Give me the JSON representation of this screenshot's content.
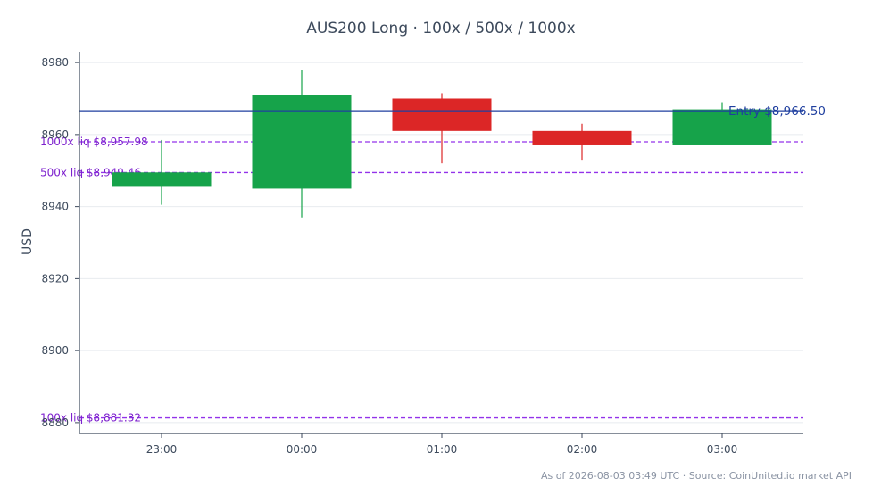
{
  "chart_data": {
    "type": "candlestick",
    "title": "AUS200 Long · 100x / 500x / 1000x",
    "ylabel": "USD",
    "xlabel": "",
    "ylim": [
      8877,
      8983
    ],
    "yticks": [
      8880,
      8900,
      8920,
      8940,
      8960,
      8980
    ],
    "categories": [
      "23:00",
      "00:00",
      "01:00",
      "02:00",
      "03:00"
    ],
    "candles": [
      {
        "open": 8945.5,
        "high": 8958.5,
        "low": 8940.5,
        "close": 8949.5
      },
      {
        "open": 8945.0,
        "high": 8978.0,
        "low": 8937.0,
        "close": 8971.0
      },
      {
        "open": 8970.0,
        "high": 8971.5,
        "low": 8952.0,
        "close": 8961.0
      },
      {
        "open": 8961.0,
        "high": 8963.0,
        "low": 8953.0,
        "close": 8957.0
      },
      {
        "open": 8957.0,
        "high": 8969.0,
        "low": 8957.0,
        "close": 8967.0
      }
    ],
    "entry": {
      "value": 8966.5,
      "label": "Entry $8,966.50",
      "color": "#1f3f9f"
    },
    "liquidation_lines": [
      {
        "value": 8957.98,
        "label": "1000x liq $8,957.98"
      },
      {
        "value": 8949.46,
        "label": "500x liq $8,949.46"
      },
      {
        "value": 8881.32,
        "label": "100x liq $8,881.32"
      }
    ],
    "grid": true,
    "colors": {
      "up": "#16a34a",
      "down": "#dc2626",
      "liq": "#9333ea",
      "liq_text": "#7e22ce",
      "axis": "#3d4a5c",
      "grid": "#e8ebef"
    },
    "footer": "As of 2026-08-03 03:49 UTC · Source: CoinUnited.io market API"
  }
}
